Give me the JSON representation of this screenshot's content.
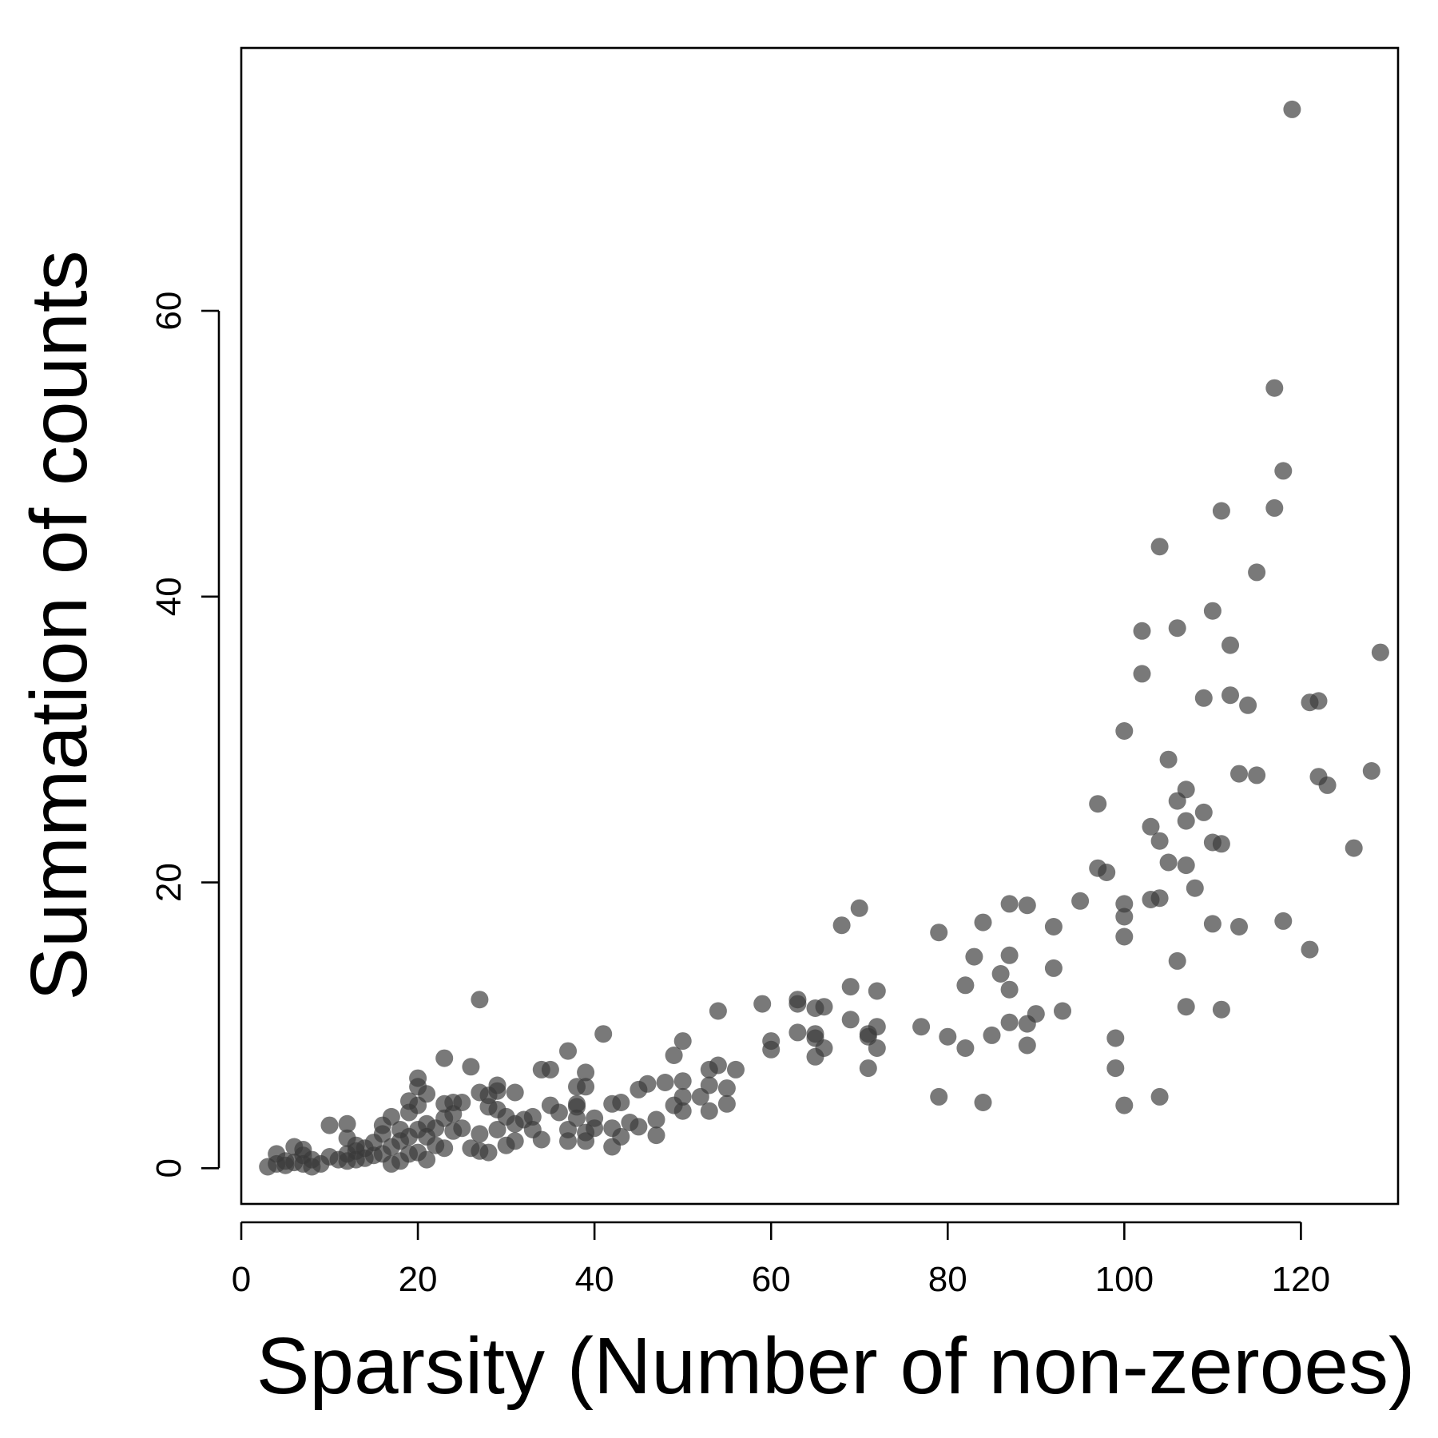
{
  "chart_data": {
    "type": "scatter",
    "title": "",
    "xlabel": "Sparsity (Number of non-zeroes)",
    "ylabel": "Summation of counts",
    "xlim": [
      0,
      131
    ],
    "ylim": [
      -2.5,
      78.4
    ],
    "xticks": [
      0,
      20,
      40,
      60,
      80,
      100,
      120
    ],
    "yticks": [
      0,
      20,
      40,
      60
    ],
    "grid": false,
    "legend": "none",
    "marker_color": "#3a3a3a",
    "marker_opacity": 0.68,
    "points": [
      [
        3,
        0.1
      ],
      [
        4,
        0.3
      ],
      [
        4,
        1.0
      ],
      [
        5,
        0.2
      ],
      [
        5,
        0.5
      ],
      [
        6,
        0.4
      ],
      [
        6,
        1.5
      ],
      [
        7,
        0.3
      ],
      [
        7,
        0.9
      ],
      [
        7,
        1.3
      ],
      [
        8,
        0.1
      ],
      [
        8,
        0.6
      ],
      [
        9,
        0.3
      ],
      [
        10,
        0.8
      ],
      [
        10,
        3.0
      ],
      [
        11,
        0.6
      ],
      [
        12,
        0.5
      ],
      [
        12,
        1.0
      ],
      [
        12,
        2.1
      ],
      [
        12,
        3.1
      ],
      [
        13,
        0.6
      ],
      [
        13,
        1.2
      ],
      [
        13,
        1.6
      ],
      [
        14,
        0.7
      ],
      [
        14,
        1.4
      ],
      [
        15,
        0.9
      ],
      [
        15,
        1.8
      ],
      [
        16,
        1.0
      ],
      [
        16,
        2.4
      ],
      [
        16,
        3.0
      ],
      [
        17,
        0.3
      ],
      [
        17,
        1.5
      ],
      [
        17,
        3.6
      ],
      [
        18,
        0.5
      ],
      [
        18,
        1.9
      ],
      [
        18,
        2.7
      ],
      [
        19,
        1.0
      ],
      [
        19,
        2.2
      ],
      [
        19,
        3.9
      ],
      [
        19,
        4.7
      ],
      [
        20,
        1.1
      ],
      [
        20,
        2.7
      ],
      [
        20,
        4.4
      ],
      [
        20,
        5.7
      ],
      [
        20,
        6.3
      ],
      [
        21,
        0.6
      ],
      [
        21,
        2.2
      ],
      [
        21,
        3.1
      ],
      [
        21,
        5.2
      ],
      [
        22,
        1.6
      ],
      [
        22,
        2.8
      ],
      [
        23,
        1.4
      ],
      [
        23,
        3.5
      ],
      [
        23,
        4.5
      ],
      [
        23,
        7.7
      ],
      [
        24,
        2.6
      ],
      [
        24,
        3.8
      ],
      [
        24,
        4.6
      ],
      [
        25,
        2.8
      ],
      [
        25,
        4.6
      ],
      [
        26,
        1.4
      ],
      [
        26,
        7.1
      ],
      [
        27,
        1.2
      ],
      [
        27,
        2.4
      ],
      [
        27,
        5.3
      ],
      [
        27,
        11.8
      ],
      [
        28,
        1.1
      ],
      [
        28,
        4.3
      ],
      [
        28,
        5.1
      ],
      [
        29,
        2.7
      ],
      [
        29,
        4.1
      ],
      [
        29,
        5.4
      ],
      [
        29,
        5.8
      ],
      [
        30,
        1.6
      ],
      [
        30,
        3.6
      ],
      [
        31,
        1.9
      ],
      [
        31,
        3.1
      ],
      [
        31,
        5.3
      ],
      [
        32,
        3.4
      ],
      [
        33,
        2.7
      ],
      [
        33,
        3.6
      ],
      [
        34,
        2.0
      ],
      [
        34,
        6.9
      ],
      [
        35,
        4.4
      ],
      [
        35,
        6.9
      ],
      [
        36,
        3.9
      ],
      [
        37,
        1.9
      ],
      [
        37,
        2.7
      ],
      [
        37,
        8.2
      ],
      [
        38,
        3.5
      ],
      [
        38,
        4.3
      ],
      [
        38,
        4.5
      ],
      [
        38,
        5.7
      ],
      [
        39,
        1.9
      ],
      [
        39,
        2.5
      ],
      [
        39,
        5.7
      ],
      [
        39,
        6.7
      ],
      [
        40,
        2.8
      ],
      [
        40,
        3.5
      ],
      [
        41,
        9.4
      ],
      [
        42,
        1.5
      ],
      [
        42,
        2.8
      ],
      [
        42,
        4.5
      ],
      [
        43,
        2.2
      ],
      [
        43,
        4.6
      ],
      [
        44,
        3.2
      ],
      [
        45,
        2.9
      ],
      [
        45,
        5.5
      ],
      [
        46,
        5.9
      ],
      [
        47,
        2.3
      ],
      [
        47,
        3.4
      ],
      [
        48,
        6.0
      ],
      [
        49,
        7.9
      ],
      [
        49,
        4.4
      ],
      [
        50,
        4.0
      ],
      [
        50,
        5.0
      ],
      [
        50,
        6.1
      ],
      [
        50,
        8.9
      ],
      [
        52,
        5.0
      ],
      [
        53,
        5.8
      ],
      [
        53,
        6.9
      ],
      [
        53,
        4.0
      ],
      [
        54,
        7.2
      ],
      [
        54,
        11.0
      ],
      [
        55,
        4.5
      ],
      [
        55,
        5.6
      ],
      [
        56,
        6.9
      ],
      [
        59,
        11.5
      ],
      [
        60,
        8.3
      ],
      [
        60,
        8.9
      ],
      [
        63,
        9.5
      ],
      [
        63,
        11.5
      ],
      [
        63,
        11.8
      ],
      [
        65,
        7.8
      ],
      [
        65,
        9.1
      ],
      [
        65,
        9.4
      ],
      [
        65,
        11.2
      ],
      [
        66,
        8.4
      ],
      [
        66,
        11.3
      ],
      [
        68,
        17.0
      ],
      [
        69,
        10.4
      ],
      [
        69,
        12.7
      ],
      [
        70,
        18.2
      ],
      [
        71,
        7.0
      ],
      [
        71,
        9.2
      ],
      [
        71,
        9.4
      ],
      [
        72,
        8.4
      ],
      [
        72,
        9.9
      ],
      [
        72,
        12.4
      ],
      [
        77,
        9.9
      ],
      [
        79,
        5.0
      ],
      [
        79,
        16.5
      ],
      [
        80,
        9.2
      ],
      [
        82,
        8.4
      ],
      [
        82,
        12.8
      ],
      [
        83,
        14.8
      ],
      [
        84,
        4.6
      ],
      [
        84,
        17.2
      ],
      [
        85,
        9.3
      ],
      [
        86,
        13.6
      ],
      [
        87,
        10.2
      ],
      [
        87,
        12.5
      ],
      [
        87,
        14.9
      ],
      [
        87,
        18.5
      ],
      [
        89,
        8.6
      ],
      [
        89,
        10.1
      ],
      [
        89,
        18.4
      ],
      [
        90,
        10.8
      ],
      [
        92,
        14.0
      ],
      [
        92,
        16.9
      ],
      [
        93,
        11.0
      ],
      [
        95,
        18.7
      ],
      [
        97,
        21.0
      ],
      [
        97,
        25.5
      ],
      [
        98,
        20.7
      ],
      [
        99,
        7.0
      ],
      [
        99,
        9.1
      ],
      [
        100,
        4.4
      ],
      [
        100,
        16.2
      ],
      [
        100,
        17.6
      ],
      [
        100,
        18.5
      ],
      [
        100,
        30.6
      ],
      [
        102,
        34.6
      ],
      [
        102,
        37.6
      ],
      [
        103,
        18.8
      ],
      [
        103,
        23.9
      ],
      [
        104,
        5.0
      ],
      [
        104,
        18.9
      ],
      [
        104,
        22.9
      ],
      [
        104,
        43.5
      ],
      [
        105,
        21.4
      ],
      [
        105,
        28.6
      ],
      [
        106,
        14.5
      ],
      [
        106,
        25.7
      ],
      [
        106,
        37.8
      ],
      [
        107,
        11.3
      ],
      [
        107,
        21.2
      ],
      [
        107,
        24.3
      ],
      [
        107,
        26.5
      ],
      [
        108,
        19.6
      ],
      [
        109,
        24.9
      ],
      [
        109,
        32.9
      ],
      [
        110,
        17.1
      ],
      [
        110,
        22.8
      ],
      [
        110,
        39.0
      ],
      [
        111,
        11.1
      ],
      [
        111,
        22.7
      ],
      [
        111,
        46.0
      ],
      [
        112,
        33.1
      ],
      [
        112,
        36.6
      ],
      [
        113,
        16.9
      ],
      [
        113,
        27.6
      ],
      [
        114,
        32.4
      ],
      [
        115,
        27.5
      ],
      [
        115,
        41.7
      ],
      [
        117,
        46.2
      ],
      [
        117,
        54.6
      ],
      [
        118,
        17.3
      ],
      [
        118,
        48.8
      ],
      [
        119,
        74.1
      ],
      [
        121,
        15.3
      ],
      [
        121,
        32.6
      ],
      [
        122,
        27.4
      ],
      [
        122,
        32.7
      ],
      [
        123,
        26.8
      ],
      [
        126,
        22.4
      ],
      [
        128,
        27.8
      ],
      [
        129,
        36.1
      ]
    ]
  }
}
